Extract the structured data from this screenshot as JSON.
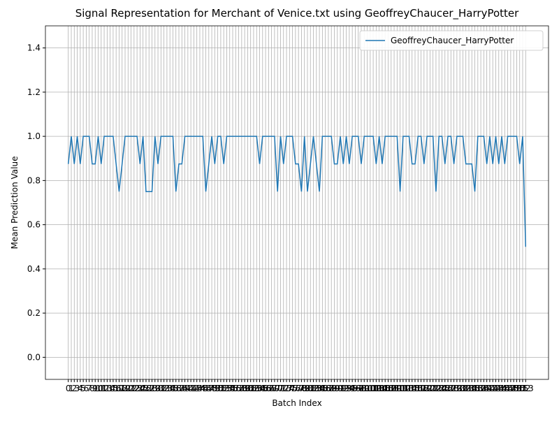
{
  "chart_data": {
    "type": "line",
    "title": "Signal Representation for Merchant of Venice.txt using GeoffreyChaucer_HarryPotter",
    "xlabel": "Batch Index",
    "ylabel": "Mean Prediction Value",
    "x": [
      0,
      1,
      2,
      3,
      4,
      5,
      6,
      7,
      8,
      9,
      10,
      11,
      12,
      13,
      14,
      15,
      16,
      17,
      18,
      19,
      20,
      21,
      22,
      23,
      24,
      25,
      26,
      27,
      28,
      29,
      30,
      31,
      32,
      33,
      34,
      35,
      36,
      37,
      38,
      39,
      40,
      41,
      42,
      43,
      44,
      45,
      46,
      47,
      48,
      49,
      50,
      51,
      52,
      53,
      54,
      55,
      56,
      57,
      58,
      59,
      60,
      61,
      62,
      63,
      64,
      65,
      66,
      67,
      68,
      69,
      70,
      71,
      72,
      73,
      74,
      75,
      76,
      77,
      78,
      79,
      80,
      81,
      82,
      83,
      84,
      85,
      86,
      87,
      88,
      89,
      90,
      91,
      92,
      93,
      94,
      95,
      96,
      97,
      98,
      99,
      100,
      101,
      102,
      103,
      104,
      105,
      106,
      107,
      108,
      109,
      110,
      111,
      112,
      113,
      114,
      115,
      116,
      117,
      118,
      119,
      120,
      121,
      122,
      123,
      124,
      125,
      126,
      127,
      128,
      129,
      130,
      131,
      132,
      133,
      134,
      135,
      136,
      137,
      138,
      139,
      140,
      141,
      142,
      143,
      144,
      145,
      146,
      147,
      148,
      149,
      150,
      151,
      152,
      153
    ],
    "series": [
      {
        "name": "GeoffreyChaucer_HarryPotter",
        "color": "#1f77b4",
        "values": [
          0.875,
          1,
          0.875,
          1,
          0.875,
          1,
          1,
          1,
          0.875,
          0.875,
          1,
          0.875,
          1,
          1,
          1,
          1,
          0.875,
          0.75,
          0.875,
          1,
          1,
          1,
          1,
          1,
          0.875,
          1,
          0.75,
          0.75,
          0.75,
          1,
          0.875,
          1,
          1,
          1,
          1,
          1,
          0.75,
          0.875,
          0.875,
          1,
          1,
          1,
          1,
          1,
          1,
          1,
          0.75,
          0.875,
          1,
          0.875,
          1,
          1,
          0.875,
          1,
          1,
          1,
          1,
          1,
          1,
          1,
          1,
          1,
          1,
          1,
          0.875,
          1,
          1,
          1,
          1,
          1,
          0.75,
          1,
          0.875,
          1,
          1,
          1,
          0.875,
          0.875,
          0.75,
          1,
          0.75,
          0.875,
          1,
          0.875,
          0.75,
          1,
          1,
          1,
          1,
          0.875,
          0.875,
          1,
          0.875,
          1,
          0.875,
          1,
          1,
          1,
          0.875,
          1,
          1,
          1,
          1,
          0.875,
          1,
          0.875,
          1,
          1,
          1,
          1,
          1,
          0.75,
          1,
          1,
          1,
          0.875,
          0.875,
          1,
          1,
          0.875,
          1,
          1,
          1,
          0.75,
          1,
          1,
          0.875,
          1,
          1,
          0.875,
          1,
          1,
          1,
          0.875,
          0.875,
          0.875,
          0.75,
          1,
          1,
          1,
          0.875,
          1,
          0.875,
          1,
          0.875,
          1,
          0.875,
          1,
          1,
          1,
          1,
          0.875,
          1,
          0.5
        ]
      }
    ],
    "xlim": [
      -7.65,
      160.65
    ],
    "xticks": [
      0,
      1,
      2,
      3,
      4,
      5,
      6,
      7,
      8,
      9,
      10,
      11,
      12,
      13,
      14,
      15,
      16,
      17,
      18,
      19,
      20,
      21,
      22,
      23,
      24,
      25,
      26,
      27,
      28,
      29,
      30,
      31,
      32,
      33,
      34,
      35,
      36,
      37,
      38,
      39,
      40,
      41,
      42,
      43,
      44,
      45,
      46,
      47,
      48,
      49,
      50,
      51,
      52,
      53,
      54,
      55,
      56,
      57,
      58,
      59,
      60,
      61,
      62,
      63,
      64,
      65,
      66,
      67,
      68,
      69,
      70,
      71,
      72,
      73,
      74,
      75,
      76,
      77,
      78,
      79,
      80,
      81,
      82,
      83,
      84,
      85,
      86,
      87,
      88,
      89,
      90,
      91,
      92,
      93,
      94,
      95,
      96,
      97,
      98,
      99,
      100,
      101,
      102,
      103,
      104,
      105,
      106,
      107,
      108,
      109,
      110,
      111,
      112,
      113,
      114,
      115,
      116,
      117,
      118,
      119,
      120,
      121,
      122,
      123,
      124,
      125,
      126,
      127,
      128,
      129,
      130,
      131,
      132,
      133,
      134,
      135,
      136,
      137,
      138,
      139,
      140,
      141,
      142,
      143,
      144,
      145,
      146,
      147,
      148,
      149,
      150,
      151,
      152,
      153
    ],
    "ylim": [
      -0.1,
      1.5
    ],
    "yticks": [
      {
        "value": 0,
        "label": "0.0"
      },
      0.2,
      0.4,
      0.6,
      0.8,
      {
        "value": 1,
        "label": "1.0"
      },
      1.2,
      1.4
    ],
    "grid": true,
    "legend": "upper right"
  }
}
